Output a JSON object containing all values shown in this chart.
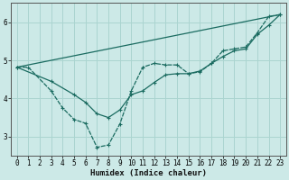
{
  "xlabel": "Humidex (Indice chaleur)",
  "background_color": "#cce9e7",
  "grid_color": "#aad4d0",
  "line_color": "#1a6b60",
  "xlim": [
    -0.5,
    23.5
  ],
  "ylim": [
    2.5,
    6.5
  ],
  "yticks": [
    3,
    4,
    5,
    6
  ],
  "xticks": [
    0,
    1,
    2,
    3,
    4,
    5,
    6,
    7,
    8,
    9,
    10,
    11,
    12,
    13,
    14,
    15,
    16,
    17,
    18,
    19,
    20,
    21,
    22,
    23
  ],
  "series_jagged_x": [
    0,
    1,
    3,
    4,
    5,
    6,
    7,
    8,
    9,
    10,
    11,
    12,
    13,
    14,
    15,
    16,
    17,
    18,
    19,
    20,
    21,
    22,
    23
  ],
  "series_jagged_y": [
    4.82,
    4.82,
    4.2,
    3.75,
    3.45,
    3.35,
    2.72,
    2.78,
    3.33,
    4.2,
    4.82,
    4.92,
    4.88,
    4.88,
    4.65,
    4.7,
    4.92,
    5.25,
    5.3,
    5.35,
    5.72,
    6.15,
    6.2
  ],
  "series_smooth_x": [
    0,
    3,
    5,
    6,
    7,
    8,
    9,
    10,
    11,
    12,
    13,
    14,
    15,
    16,
    17,
    18,
    19,
    20,
    21,
    22,
    23
  ],
  "series_smooth_y": [
    4.82,
    4.45,
    4.1,
    3.9,
    3.6,
    3.5,
    3.7,
    4.1,
    4.2,
    4.42,
    4.62,
    4.65,
    4.65,
    4.72,
    4.92,
    5.1,
    5.25,
    5.3,
    5.68,
    5.92,
    6.2
  ],
  "series_line_x": [
    0,
    23
  ],
  "series_line_y": [
    4.82,
    6.2
  ]
}
